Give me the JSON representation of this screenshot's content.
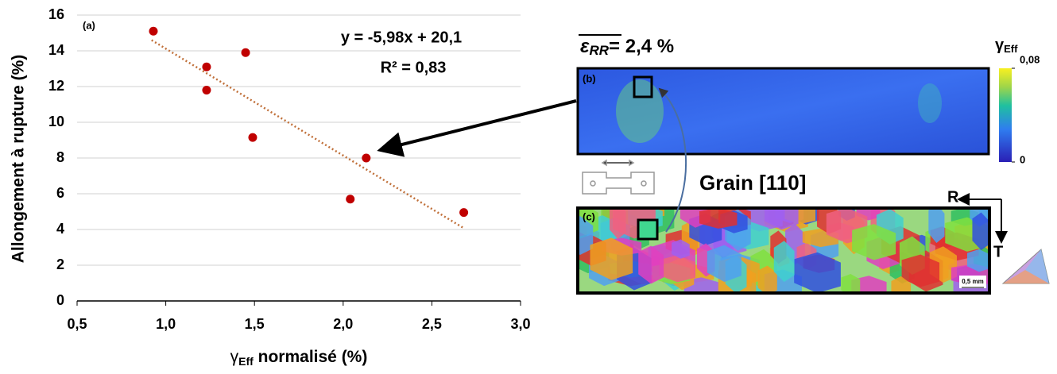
{
  "chart_data": {
    "type": "scatter",
    "label": "(a)",
    "y_label": "Allongement à rupture (%)",
    "x_label": {
      "symbol": "γ",
      "sub": "Eff",
      "text": " normalisé (%)"
    },
    "x": [
      0.93,
      1.23,
      1.23,
      1.45,
      1.49,
      2.13,
      2.04,
      2.68
    ],
    "values": [
      15.1,
      13.1,
      11.8,
      13.9,
      9.15,
      8.0,
      5.7,
      4.95
    ],
    "color": "#c00000",
    "xlim": [
      0.5,
      3.0
    ],
    "xticks": [
      {
        "value": 0.5,
        "label": "0,5"
      },
      {
        "value": 1.0,
        "label": "1,0"
      },
      {
        "value": 1.5,
        "label": "1,5"
      },
      {
        "value": 2.0,
        "label": "2,0"
      },
      {
        "value": 2.5,
        "label": "2,5"
      },
      {
        "value": 3.0,
        "label": "3,0"
      }
    ],
    "ylim": [
      0,
      16
    ],
    "yticks": [
      0,
      2,
      4,
      6,
      8,
      10,
      12,
      14,
      16
    ],
    "grid": true,
    "trendline": {
      "equation": "y = -5,98x + 20,1",
      "r2": "R² = 0,83",
      "slope": -5.98,
      "intercept": 20.1,
      "x_range": [
        0.92,
        2.68
      ],
      "color": "#c0703a"
    }
  },
  "panels": {
    "strain": {
      "symbol": "ε",
      "sub": "RR",
      "text": "= 2,4 %"
    },
    "b_label": "(b)",
    "c_label": "(c)",
    "grain": "Grain [110]",
    "axis_r": "R",
    "axis_t": "T",
    "scale": "0,5 mm",
    "colorbar": {
      "symbol": "γ",
      "sub": "Eff",
      "max": {
        "value": 0.08,
        "label": "0,08"
      },
      "min": 0
    }
  }
}
